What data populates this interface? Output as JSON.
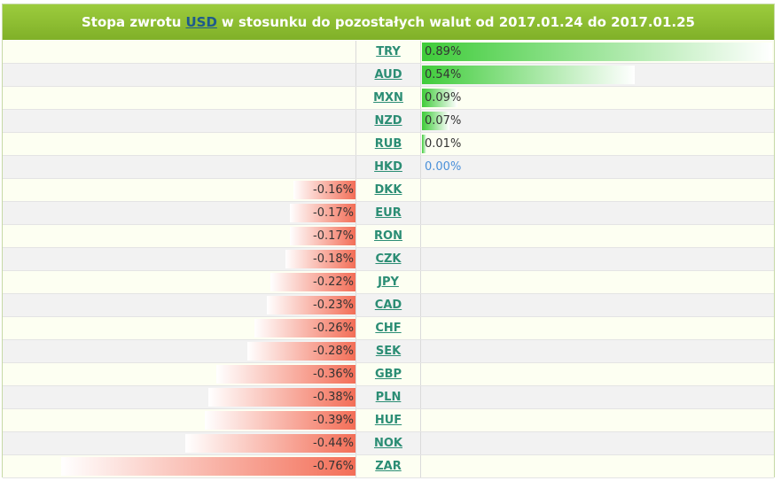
{
  "header": {
    "title_before": "Stopa zwrotu",
    "base_currency": "USD",
    "title_after": "w stosunku do pozostałych walut od 2017.01.24 do 2017.01.25"
  },
  "colors": {
    "header_green": "#8fc232",
    "positive_bar": "#3fcc3a",
    "negative_bar": "#f36e57",
    "link_text": "#2b8d74",
    "zero_text": "#4a90d9"
  },
  "rows": [
    {
      "code": "TRY",
      "value": 0.89,
      "label": "0.89%"
    },
    {
      "code": "AUD",
      "value": 0.54,
      "label": "0.54%"
    },
    {
      "code": "MXN",
      "value": 0.09,
      "label": "0.09%"
    },
    {
      "code": "NZD",
      "value": 0.07,
      "label": "0.07%"
    },
    {
      "code": "RUB",
      "value": 0.01,
      "label": "0.01%"
    },
    {
      "code": "HKD",
      "value": 0.0,
      "label": "0.00%"
    },
    {
      "code": "DKK",
      "value": -0.16,
      "label": "-0.16%"
    },
    {
      "code": "EUR",
      "value": -0.17,
      "label": "-0.17%"
    },
    {
      "code": "RON",
      "value": -0.17,
      "label": "-0.17%"
    },
    {
      "code": "CZK",
      "value": -0.18,
      "label": "-0.18%"
    },
    {
      "code": "JPY",
      "value": -0.22,
      "label": "-0.22%"
    },
    {
      "code": "CAD",
      "value": -0.23,
      "label": "-0.23%"
    },
    {
      "code": "CHF",
      "value": -0.26,
      "label": "-0.26%"
    },
    {
      "code": "SEK",
      "value": -0.28,
      "label": "-0.28%"
    },
    {
      "code": "GBP",
      "value": -0.36,
      "label": "-0.36%"
    },
    {
      "code": "PLN",
      "value": -0.38,
      "label": "-0.38%"
    },
    {
      "code": "HUF",
      "value": -0.39,
      "label": "-0.39%"
    },
    {
      "code": "NOK",
      "value": -0.44,
      "label": "-0.44%"
    },
    {
      "code": "ZAR",
      "value": -0.76,
      "label": "-0.76%"
    }
  ]
}
